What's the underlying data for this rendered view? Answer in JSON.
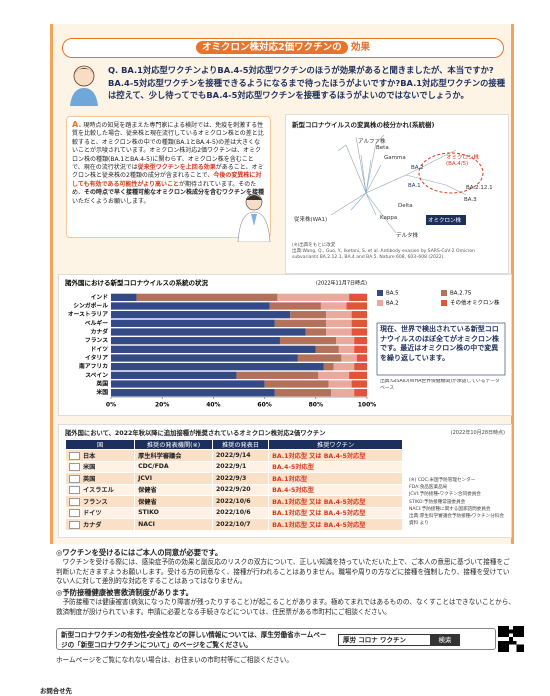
{
  "header": {
    "title": "オミクロン株対応2価ワクチンの",
    "title_emphasis": "効果"
  },
  "question": "Q. BA.1対応型ワクチンよりBA.4-5対応型ワクチンのほうが効果があると聞きましたが、本当ですか?BA.4-5対応型ワクチンを接種できるようになるまで待ったほうがよいですか?BA.1対応型ワクチンの接種は控えて、少し待ってでもBA.4-5対応型ワクチンを接種するほうがよいのではないでしょうか。",
  "answer": {
    "label": "A.",
    "text_1": "現時点の知見を踏まえた専門家による検討では、免疫を刺激する性質を比較した場合、従来株と現在流行しているオミクロン株との差と比較すると、オミクロン株の中での種類(BA.1とBA.4-5)の差は大きくないことが示唆されています。オミクロン株対応2価ワクチンは、オミクロン株の種類(BA.1とBA.4-5)に関わらず、オミクロン株を含むことで、現在の流行状況では",
    "highlight_1": "従来型ワクチンを上回る効果",
    "text_2": "があること、オミクロン株と従来株の2種類の成分が含まれることで、",
    "highlight_2": "今後の変異株に対しても有効である可能性がより高いこと",
    "text_3": "が期待されています。そのため、",
    "bold_1": "その時点で早く接種可能なオミクロン株成分を含むワクチンを接種",
    "text_4": "いただくようお願いします。"
  },
  "figure": {
    "title": "新型コロナウイルスの変異株の枝分かれ(系統樹)",
    "labels": [
      "Beta",
      "アルファ株",
      "Gamma",
      "オミクロン株(BA.4/5)",
      "BA.2",
      "BA.1",
      "BA.2.12.1",
      "BA.3",
      "Delta",
      "Kappa",
      "デルタ株",
      "従来株(WA1)",
      "オミクロン株"
    ],
    "note": "(※)出典をもとに改変",
    "source": "出典:Wang, Q., Guo, Y., Iketani, S. et al. Antibody evasion by SARS-CoV-2 Omicron subvariants BA.2.12.1, BA.4 and BA.5. Nature 608, 603–608 (2022)."
  },
  "chart_data": {
    "type": "bar",
    "orientation": "horizontal",
    "stacked": true,
    "title": "諸外国における新型コロナウイルスの系統の状況",
    "date_note": "(2022年11月7日時点)",
    "categories": [
      "インド",
      "シンガポール",
      "オーストラリア",
      "ベルギー",
      "カナダ",
      "フランス",
      "ドイツ",
      "イタリア",
      "南アフリカ",
      "スペイン",
      "英国",
      "米国"
    ],
    "series": [
      {
        "name": "BA.5",
        "color": "#344a86",
        "values": [
          10,
          62,
          70,
          64,
          76,
          66,
          80,
          73,
          83,
          49,
          60,
          64
        ]
      },
      {
        "name": "BA.2.75",
        "color": "#b3705a",
        "values": [
          55,
          20,
          14,
          20,
          8,
          22,
          9,
          17,
          4,
          32,
          25,
          22
        ]
      },
      {
        "name": "BA.2",
        "color": "#eaa99d",
        "values": [
          28,
          10,
          10,
          10,
          10,
          7,
          6,
          6,
          8,
          12,
          9,
          9
        ]
      },
      {
        "name": "その他オミクロン株",
        "color": "#e2543a",
        "values": [
          7,
          8,
          6,
          6,
          6,
          5,
          5,
          4,
          5,
          7,
          6,
          5
        ]
      }
    ],
    "xlim": [
      0,
      100
    ],
    "xticks": [
      {
        "value": 0,
        "label": "0%"
      },
      {
        "value": 20,
        "label": "20%"
      },
      {
        "value": 40,
        "label": "40%"
      },
      {
        "value": 60,
        "label": "60%"
      },
      {
        "value": 80,
        "label": "80%"
      },
      {
        "value": 100,
        "label": "100%"
      }
    ],
    "grid": false,
    "side_note": "現在、世界で検出されている新型コロナウイルスのほぼ全てがオミクロン株です。最近はオミクロン株の中で変異を繰り返しています。",
    "source": "出典:GISAID(WHA世界保健機関)が承認しているデータベース"
  },
  "table": {
    "title": "諸外国において、2022年秋以降に追加接種が推奨されているオミクロン株対応2価ワクチン",
    "date": "(2022年10月28日時点)",
    "headers": [
      "国",
      "推奨の発表機関(※)",
      "推奨の発表日",
      "推奨ワクチン"
    ],
    "rows": [
      [
        "日本",
        "厚生科学審議会",
        "2022/9/14",
        "BA.1対応型 又は BA.4-5対応型"
      ],
      [
        "米国",
        "CDC/FDA",
        "2022/9/1",
        "BA.4-5対応型"
      ],
      [
        "英国",
        "JCVI",
        "2022/9/3",
        "BA.1対応型"
      ],
      [
        "イスラエル",
        "保健省",
        "2022/9/20",
        "BA.4-5対応型"
      ],
      [
        "フランス",
        "保健省",
        "2022/10/6",
        "BA.1対応型 又は BA.4-5対応型"
      ],
      [
        "ドイツ",
        "STIKO",
        "2022/10/6",
        "BA.1対応型 又は BA.4-5対応型"
      ],
      [
        "カナダ",
        "NACI",
        "2022/10/7",
        "BA.1対応型 又は BA.4-5対応型"
      ]
    ],
    "notes": [
      "(※) CDC:米国予防管理センター",
      "FDA:食品医薬品局",
      "JCVI:予防接種・ワクチン合同委員会",
      "STIKO:予防接種常設委員会",
      "NACI:予防接種に関する国家諮問委員会",
      "出典:厚生科学審議会予防接種・ワクチン分科会資料 より"
    ]
  },
  "consent": {
    "title": "◎ワクチンを受けるにはご本人の同意が必要です。",
    "body": "ワクチンを受ける際には、感染症予防の効果と副反応のリスクの双方について、正しい知識を持っていただいた上で、ご本人の意思に基づいて接種をご判断いただきますようお願いします。受ける方の同意なく、接種が行われることはありません。職場や周りの方などに接種を強制したり、接種を受けていない人に対して差別的な対応をすることはあってはなりません。"
  },
  "relief": {
    "title": "◎予防接種健康被害救済制度があります。",
    "body": "予防接種では健康被害(病気になったり障害が残ったりすること)が起こることがあります。極めてまれではあるものの、なくすことはできないことから、救済制度が設けられています。申請に必要となる手続きなどについては、住民票がある市町村にご相談ください。"
  },
  "info": {
    "text": "新型コロナワクチンの有効性・安全性などの詳しい情報については、厚生労働省ホームページの「新型コロナワクチンについて」のページをご覧ください。",
    "search": "厚労 コロナ ワクチン",
    "button": "検索",
    "alt": "ホームページをご覧になれない場合は、お住まいの市町村等にご相談ください。"
  },
  "contact": "お問合せ先"
}
